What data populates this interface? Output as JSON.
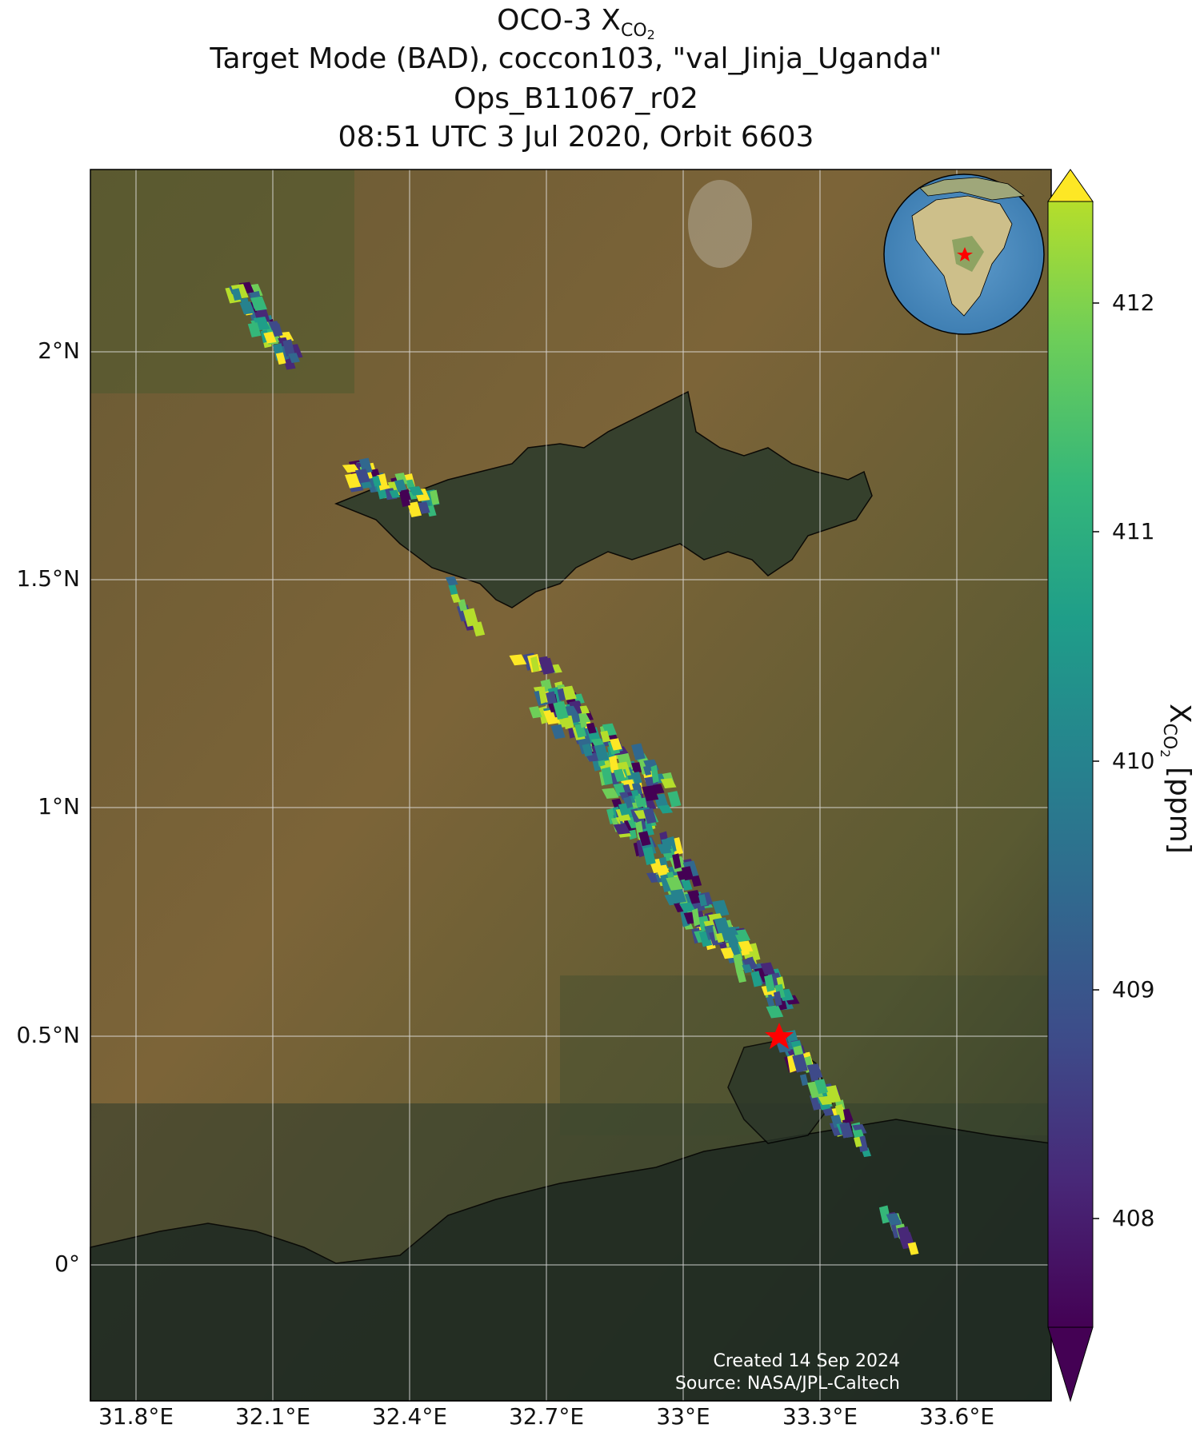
{
  "title": {
    "line1_prefix": "OCO-3 X",
    "line1_sub": "CO",
    "line1_sub2": "2",
    "line2": "Target Mode (BAD), coccon103, \"val_Jinja_Uganda\"",
    "line3": "Ops_B11067_r02",
    "line4": "08:51 UTC 3 Jul 2020, Orbit 6603"
  },
  "axes": {
    "x_ticks": [
      "31.8°E",
      "32.1°E",
      "32.4°E",
      "32.7°E",
      "33°E",
      "33.3°E",
      "33.6°E"
    ],
    "y_ticks": [
      "2°N",
      "1.5°N",
      "1°N",
      "0.5°N",
      "0°"
    ],
    "xlim": [
      31.7,
      33.8
    ],
    "ylim": [
      -0.3,
      2.4
    ]
  },
  "colorbar": {
    "ticks": [
      "412",
      "411",
      "410",
      "409",
      "408"
    ],
    "label_prefix": "X",
    "label_sub": "CO",
    "label_sub2": "2",
    "label_suffix": " [ppm]",
    "range": [
      407.3,
      412.3
    ],
    "colormap": "viridis",
    "extend": "both"
  },
  "credits": {
    "created": "Created 14 Sep 2024",
    "source": "Source: NASA/JPL-Caltech"
  },
  "target_site": {
    "name": "val_Jinja_Uganda",
    "lon": 33.2,
    "lat": 0.5,
    "marker": "red-star"
  },
  "inset_globe": {
    "marker": "red-star"
  },
  "colors": {
    "land": "#7a6638",
    "water": "#2f3d2c",
    "grid": "#e6e6e6",
    "coastline": "#000000",
    "target": "#ff0000"
  }
}
